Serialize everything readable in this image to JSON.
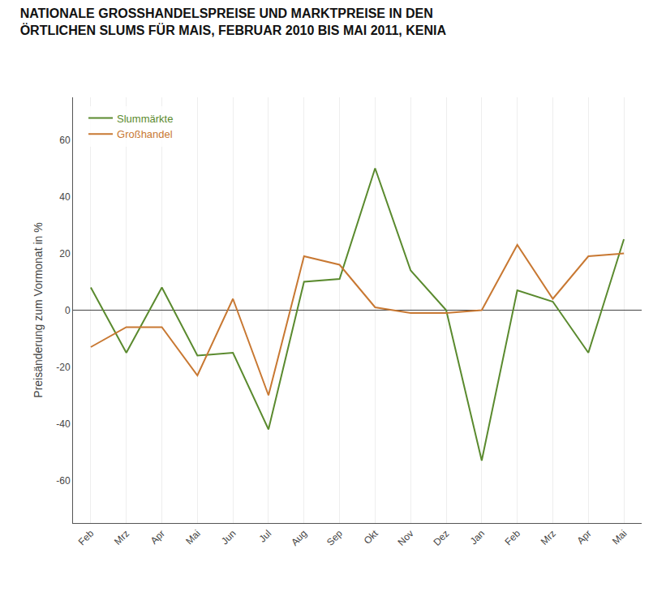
{
  "chart_data": {
    "type": "line",
    "title": "NATIONALE GROSSHANDELSPREISE UND MARKTPREISE IN DEN\nÖRTLICHEN SLUMS FÜR MAIS, FEBRUAR 2010 BIS MAI 2011, KENIA",
    "y_label": "Preisänderung zum Vormonat in %",
    "categories": [
      "Feb",
      "Mrz",
      "Apr",
      "Mai",
      "Jun",
      "Jul",
      "Aug",
      "Sep",
      "Okt",
      "Nov",
      "Dez",
      "Jan",
      "Feb",
      "Mrz",
      "Apr",
      "Mai"
    ],
    "series": [
      {
        "name": "Slummärkte",
        "color": "#5a8a2e",
        "values": [
          8,
          -15,
          8,
          -16,
          -15,
          -42,
          10,
          11,
          50,
          14,
          0,
          -53,
          7,
          3,
          -15,
          25
        ]
      },
      {
        "name": "Großhandel",
        "color": "#c87832",
        "values": [
          -13,
          -6,
          -6,
          -23,
          4,
          -30,
          19,
          16,
          1,
          -1,
          -1,
          0,
          23,
          4,
          19,
          20
        ]
      }
    ],
    "ylim": [
      -75,
      75
    ],
    "yticks": [
      -60,
      -40,
      -20,
      0,
      20,
      40,
      60
    ],
    "grid": true,
    "legend": "upper left"
  }
}
